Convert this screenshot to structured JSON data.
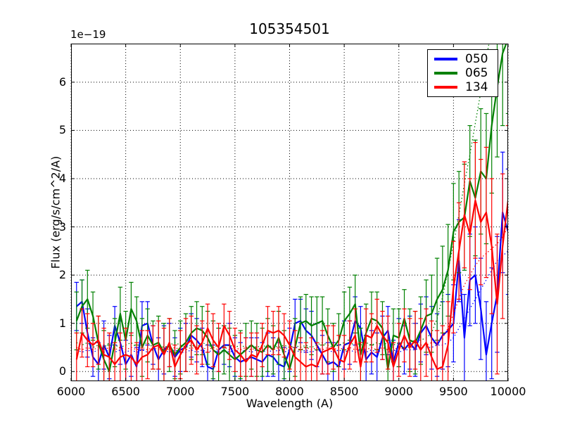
{
  "chart_data": {
    "type": "line",
    "title": "105354501",
    "xlabel": "Wavelength (A)",
    "ylabel": "Flux (erg/s/cm^2/A)",
    "y_offset_label": "1e−19",
    "xlim": [
      6000,
      10000
    ],
    "ylim": [
      -0.2,
      6.8
    ],
    "xticks": [
      6000,
      6500,
      7000,
      7500,
      8000,
      8500,
      9000,
      9500,
      10000
    ],
    "yticks": [
      0,
      1,
      2,
      3,
      4,
      5,
      6
    ],
    "grid": "dotted",
    "legend_position": "upper right",
    "x_start": 6050,
    "x_step": 50,
    "background": "#ffffff",
    "axis_color": "#000000",
    "grid_color": "#000000",
    "series": [
      {
        "name": "050",
        "color": "#0000ff",
        "style": "solid-with-errorbars-and-dotted-noise",
        "values": [
          1.35,
          1.45,
          0.8,
          0.3,
          0.15,
          0.55,
          0.3,
          0.95,
          0.6,
          0.15,
          0.35,
          0.1,
          0.95,
          1.0,
          0.55,
          0.25,
          0.45,
          0.55,
          0.3,
          0.45,
          0.5,
          0.75,
          0.65,
          0.5,
          0.1,
          0.05,
          0.45,
          0.55,
          0.55,
          0.3,
          0.2,
          0.25,
          0.3,
          0.25,
          0.2,
          0.35,
          0.3,
          0.15,
          0.1,
          0.45,
          1.0,
          1.05,
          0.85,
          0.75,
          0.55,
          0.35,
          0.15,
          0.2,
          0.1,
          0.55,
          0.6,
          1.05,
          0.9,
          0.25,
          0.4,
          0.3,
          0.7,
          0.85,
          0.2,
          0.6,
          0.45,
          0.6,
          0.45,
          0.8,
          0.95,
          0.7,
          0.55,
          0.75,
          0.85,
          1.0,
          2.3,
          0.7,
          1.9,
          2.0,
          1.3,
          0.35,
          1.0,
          1.6,
          3.3,
          2.9
        ],
        "errors": [
          0.5,
          0.45,
          0.5,
          0.4,
          0.45,
          0.5,
          0.45,
          0.4,
          0.45,
          0.5,
          0.45,
          0.4,
          0.5,
          0.45,
          0.4,
          0.45,
          0.5,
          0.45,
          0.4,
          0.45,
          0.5,
          0.45,
          0.45,
          0.4,
          0.45,
          0.5,
          0.45,
          0.4,
          0.45,
          0.4,
          0.4,
          0.45,
          0.4,
          0.45,
          0.4,
          0.45,
          0.4,
          0.45,
          0.4,
          0.45,
          0.5,
          0.45,
          0.45,
          0.5,
          0.45,
          0.4,
          0.45,
          0.4,
          0.45,
          0.5,
          0.45,
          0.5,
          0.45,
          0.5,
          0.45,
          0.5,
          0.45,
          0.5,
          0.45,
          0.5,
          0.5,
          0.55,
          0.55,
          0.6,
          0.6,
          0.65,
          0.65,
          0.7,
          0.75,
          0.8,
          0.85,
          0.9,
          0.95,
          1.0,
          1.05,
          1.1,
          1.15,
          1.2,
          1.25,
          1.3
        ],
        "noise_dotted": [
          0.45,
          0.4,
          0.45,
          0.4,
          0.45,
          0.4,
          0.45,
          0.4,
          0.45,
          0.4,
          0.45,
          0.4,
          0.45,
          0.4,
          0.45,
          0.4,
          0.45,
          0.4,
          0.45,
          0.4,
          0.4,
          0.45,
          0.4,
          0.45,
          0.4,
          0.45,
          0.4,
          0.45,
          0.4,
          0.45,
          0.4,
          0.45,
          0.4,
          0.45,
          0.4,
          0.45,
          0.4,
          0.45,
          0.4,
          0.45,
          0.45,
          0.4,
          0.45,
          0.4,
          0.45,
          0.4,
          0.45,
          0.4,
          0.45,
          0.4,
          0.45,
          0.4,
          0.45,
          0.4,
          0.45,
          0.4,
          0.45,
          0.4,
          0.45,
          0.4,
          0.45,
          0.45,
          0.45,
          0.5,
          0.5,
          0.5,
          0.55,
          0.55,
          0.6,
          0.7,
          0.9,
          1.1,
          1.3,
          1.5,
          1.7,
          1.9,
          2.1,
          2.3,
          2.4,
          2.5
        ]
      },
      {
        "name": "065",
        "color": "#008000",
        "style": "solid-with-errorbars-and-dotted-noise",
        "values": [
          1.05,
          1.35,
          1.5,
          1.15,
          0.6,
          0.25,
          0.0,
          0.6,
          1.2,
          0.65,
          1.3,
          1.05,
          0.5,
          0.75,
          0.55,
          0.6,
          0.4,
          0.55,
          0.35,
          0.5,
          0.6,
          0.8,
          0.9,
          0.85,
          0.7,
          0.45,
          0.35,
          0.45,
          0.35,
          0.25,
          0.35,
          0.45,
          0.55,
          0.45,
          0.4,
          0.55,
          0.45,
          0.7,
          0.35,
          0.05,
          0.5,
          1.0,
          1.05,
          0.95,
          1.0,
          1.05,
          0.75,
          0.5,
          0.65,
          1.05,
          1.2,
          1.4,
          0.35,
          0.8,
          1.1,
          1.05,
          0.9,
          0.05,
          0.75,
          0.7,
          1.1,
          0.65,
          0.6,
          0.85,
          1.15,
          1.2,
          1.5,
          1.7,
          2.1,
          2.9,
          3.1,
          3.2,
          3.95,
          3.6,
          4.15,
          4.0,
          5.1,
          5.9,
          6.6,
          6.9
        ],
        "errors": [
          0.6,
          0.55,
          0.6,
          0.5,
          0.55,
          0.6,
          0.55,
          0.5,
          0.55,
          0.6,
          0.55,
          0.5,
          0.6,
          0.55,
          0.5,
          0.55,
          0.6,
          0.55,
          0.5,
          0.55,
          0.6,
          0.55,
          0.55,
          0.5,
          0.55,
          0.6,
          0.55,
          0.5,
          0.55,
          0.5,
          0.5,
          0.55,
          0.5,
          0.55,
          0.5,
          0.55,
          0.5,
          0.55,
          0.5,
          0.55,
          0.6,
          0.55,
          0.55,
          0.6,
          0.55,
          0.5,
          0.55,
          0.5,
          0.55,
          0.6,
          0.55,
          0.6,
          0.55,
          0.6,
          0.55,
          0.6,
          0.55,
          0.6,
          0.55,
          0.6,
          0.6,
          0.65,
          0.65,
          0.7,
          0.75,
          0.8,
          0.85,
          0.9,
          0.95,
          1.0,
          1.05,
          1.1,
          1.15,
          1.2,
          1.3,
          1.35,
          1.4,
          1.45,
          1.5,
          1.55
        ],
        "noise_dotted": [
          0.6,
          0.55,
          0.6,
          0.5,
          0.55,
          0.5,
          0.6,
          0.55,
          0.5,
          0.55,
          0.6,
          0.5,
          0.55,
          0.6,
          0.5,
          0.55,
          0.5,
          0.55,
          0.6,
          0.55,
          0.5,
          0.55,
          0.5,
          0.6,
          0.55,
          0.5,
          0.55,
          0.5,
          0.55,
          0.5,
          0.55,
          0.5,
          0.55,
          0.5,
          0.55,
          0.5,
          0.55,
          0.5,
          0.55,
          0.5,
          0.55,
          0.5,
          0.55,
          0.5,
          0.55,
          0.6,
          0.55,
          0.5,
          0.55,
          0.6,
          0.55,
          0.6,
          0.55,
          0.6,
          0.55,
          0.6,
          0.55,
          0.6,
          0.55,
          0.6,
          0.6,
          0.6,
          0.65,
          0.65,
          0.7,
          0.8,
          1.1,
          1.55,
          2.1,
          2.65,
          3.25,
          3.9,
          4.5,
          5.15,
          5.8,
          6.5,
          7.1,
          7.6,
          8.0,
          8.4
        ]
      },
      {
        "name": "134",
        "color": "#ff0000",
        "style": "solid-with-errorbars-and-dotted-noise",
        "values": [
          0.25,
          0.8,
          0.65,
          0.55,
          0.65,
          0.35,
          0.3,
          0.15,
          0.3,
          0.35,
          0.3,
          0.15,
          0.3,
          0.35,
          0.5,
          0.55,
          0.35,
          0.6,
          0.1,
          0.35,
          0.55,
          0.65,
          0.45,
          0.6,
          0.9,
          0.65,
          0.5,
          0.95,
          0.75,
          0.45,
          0.35,
          0.2,
          0.35,
          0.3,
          0.55,
          0.85,
          0.8,
          0.85,
          0.75,
          0.55,
          0.3,
          0.2,
          0.1,
          0.15,
          0.1,
          0.4,
          0.45,
          0.5,
          0.25,
          0.2,
          0.55,
          0.75,
          0.1,
          0.75,
          0.7,
          0.95,
          0.75,
          0.6,
          0.1,
          0.45,
          0.75,
          0.5,
          0.65,
          0.45,
          0.6,
          0.3,
          0.05,
          0.1,
          0.55,
          1.75,
          2.5,
          3.25,
          2.85,
          3.55,
          3.1,
          3.3,
          2.6,
          1.4,
          2.6,
          3.55
        ],
        "errors": [
          0.55,
          0.5,
          0.55,
          0.45,
          0.5,
          0.55,
          0.5,
          0.45,
          0.5,
          0.55,
          0.5,
          0.45,
          0.55,
          0.5,
          0.45,
          0.5,
          0.55,
          0.5,
          0.45,
          0.5,
          0.55,
          0.5,
          0.5,
          0.45,
          0.5,
          0.55,
          0.5,
          0.45,
          0.5,
          0.45,
          0.45,
          0.5,
          0.45,
          0.5,
          0.45,
          0.5,
          0.45,
          0.5,
          0.45,
          0.5,
          0.55,
          0.5,
          0.5,
          0.55,
          0.5,
          0.45,
          0.5,
          0.45,
          0.5,
          0.55,
          0.5,
          0.55,
          0.5,
          0.55,
          0.5,
          0.55,
          0.5,
          0.55,
          0.5,
          0.55,
          0.55,
          0.6,
          0.6,
          0.65,
          0.7,
          0.75,
          0.8,
          0.85,
          0.9,
          0.95,
          1.0,
          1.1,
          1.15,
          1.2,
          1.3,
          1.35,
          1.4,
          1.45,
          1.5,
          1.55
        ],
        "noise_dotted": [
          0.5,
          0.45,
          0.5,
          0.45,
          0.5,
          0.45,
          0.5,
          0.45,
          0.5,
          0.45,
          0.5,
          0.45,
          0.5,
          0.45,
          0.5,
          0.45,
          0.5,
          0.45,
          0.5,
          0.45,
          0.45,
          0.5,
          0.45,
          0.5,
          0.45,
          0.5,
          0.45,
          0.5,
          0.45,
          0.5,
          0.45,
          0.5,
          0.45,
          0.5,
          0.45,
          0.5,
          0.45,
          0.5,
          0.45,
          0.5,
          0.5,
          0.45,
          0.5,
          0.45,
          0.5,
          0.45,
          0.5,
          0.45,
          0.5,
          0.45,
          0.5,
          0.45,
          0.5,
          0.45,
          0.5,
          0.45,
          0.5,
          0.45,
          0.5,
          0.45,
          0.5,
          0.5,
          0.5,
          0.55,
          0.55,
          0.6,
          0.6,
          0.7,
          0.9,
          1.2,
          1.5,
          1.8,
          2.0,
          2.2,
          2.35,
          2.45,
          2.55,
          2.65,
          2.8,
          3.0
        ]
      }
    ]
  }
}
